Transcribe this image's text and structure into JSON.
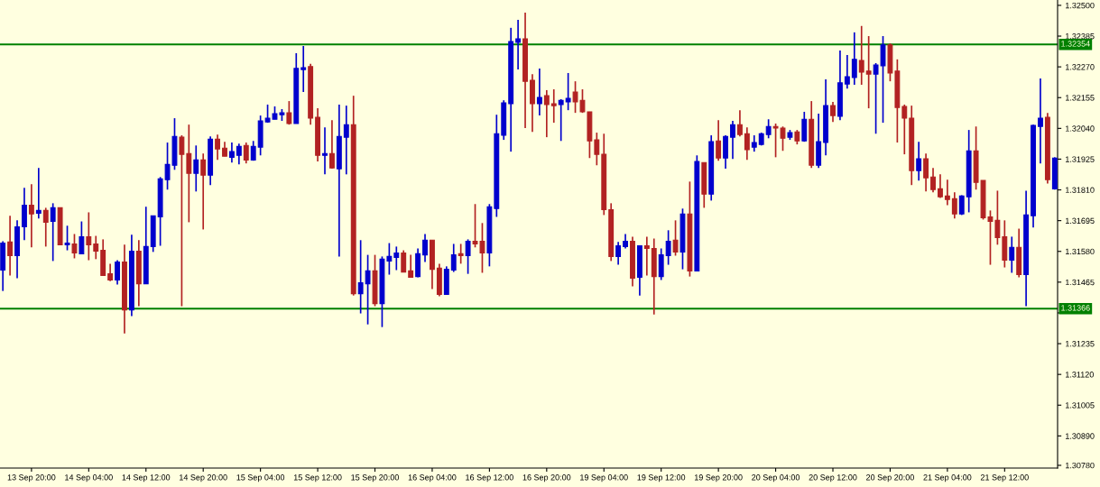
{
  "chart_data": {
    "type": "candlestick",
    "categories": [
      null,
      null,
      null,
      null,
      "13 Sep 20:00",
      null,
      null,
      null,
      null,
      null,
      null,
      null,
      "14 Sep 04:00",
      null,
      null,
      null,
      null,
      null,
      null,
      null,
      "14 Sep 12:00",
      null,
      null,
      null,
      null,
      null,
      null,
      null,
      "14 Sep 20:00",
      null,
      null,
      null,
      null,
      null,
      null,
      null,
      "15 Sep 04:00",
      null,
      null,
      null,
      null,
      null,
      null,
      null,
      "15 Sep 12:00",
      null,
      null,
      null,
      null,
      null,
      null,
      null,
      "15 Sep 20:00",
      null,
      null,
      null,
      null,
      null,
      null,
      null,
      "16 Sep 04:00",
      null,
      null,
      null,
      null,
      null,
      null,
      null,
      "16 Sep 12:00",
      null,
      null,
      null,
      null,
      null,
      null,
      null,
      "16 Sep 20:00",
      null,
      null,
      null,
      null,
      null,
      null,
      null,
      "19 Sep 04:00",
      null,
      null,
      null,
      null,
      null,
      null,
      null,
      "19 Sep 12:00",
      null,
      null,
      null,
      null,
      null,
      null,
      null,
      "19 Sep 20:00",
      null,
      null,
      null,
      null,
      null,
      null,
      null,
      "20 Sep 04:00",
      null,
      null,
      null,
      null,
      null,
      null,
      null,
      "20 Sep 12:00",
      null,
      null,
      null,
      null,
      null,
      null,
      null,
      "20 Sep 20:00",
      null,
      null,
      null,
      null,
      null,
      null,
      null,
      "21 Sep 04:00",
      null,
      null,
      null,
      null,
      null,
      null,
      null,
      "21 Sep 12:00",
      null,
      null,
      null,
      null,
      null,
      null,
      null
    ],
    "ohlc": [
      [
        1.3151,
        1.31618,
        1.31432,
        1.31611
      ],
      [
        1.31615,
        1.31713,
        1.3149,
        1.31564
      ],
      [
        1.31564,
        1.31696,
        1.3148,
        1.31672
      ],
      [
        1.31672,
        1.31818,
        1.31622,
        1.31753
      ],
      [
        1.31753,
        1.31831,
        1.31595,
        1.3172
      ],
      [
        1.31723,
        1.31892,
        1.31703,
        1.31733
      ],
      [
        1.31733,
        1.31743,
        1.31598,
        1.31689
      ],
      [
        1.31692,
        1.3176,
        1.31544,
        1.31743
      ],
      [
        1.31743,
        1.31743,
        1.31605,
        1.31605
      ],
      [
        1.31605,
        1.31676,
        1.31584,
        1.31611
      ],
      [
        1.31608,
        1.31645,
        1.31554,
        1.31574
      ],
      [
        1.31571,
        1.31692,
        1.31571,
        1.31635
      ],
      [
        1.31635,
        1.31726,
        1.31547,
        1.31605
      ],
      [
        1.31608,
        1.31638,
        1.31551,
        1.31581
      ],
      [
        1.31584,
        1.31625,
        1.3149,
        1.3149
      ],
      [
        1.31496,
        1.31534,
        1.31469,
        1.31473
      ],
      [
        1.31473,
        1.31547,
        1.31456,
        1.3154
      ],
      [
        1.3154,
        1.31605,
        1.31273,
        1.31361
      ],
      [
        1.31361,
        1.31642,
        1.31338,
        1.31581
      ],
      [
        1.31581,
        1.31622,
        1.31375,
        1.31459
      ],
      [
        1.31459,
        1.31747,
        1.31459,
        1.31598
      ],
      [
        1.31598,
        1.31713,
        1.31578,
        1.31713
      ],
      [
        1.31709,
        1.31858,
        1.31601,
        1.31851
      ],
      [
        1.31848,
        1.31987,
        1.31811,
        1.31905
      ],
      [
        1.31902,
        1.32078,
        1.31885,
        1.3201
      ],
      [
        1.32007,
        1.32014,
        1.31375,
        1.31943
      ],
      [
        1.31946,
        1.32054,
        1.31689,
        1.31872
      ],
      [
        1.31872,
        1.31976,
        1.31804,
        1.31922
      ],
      [
        1.31922,
        1.31946,
        1.31662,
        1.31865
      ],
      [
        1.31865,
        1.3201,
        1.31828,
        1.32
      ],
      [
        1.32,
        1.32017,
        1.31922,
        1.31963
      ],
      [
        1.31966,
        1.3199,
        1.31936,
        1.31936
      ],
      [
        1.31932,
        1.31987,
        1.31912,
        1.31953
      ],
      [
        1.31939,
        1.31983,
        1.31905,
        1.31973
      ],
      [
        1.31976,
        1.31987,
        1.31909,
        1.31922
      ],
      [
        1.31922,
        1.31993,
        1.31919,
        1.31973
      ],
      [
        1.3197,
        1.32088,
        1.31939,
        1.32068
      ],
      [
        1.32064,
        1.32129,
        1.32061,
        1.32078
      ],
      [
        1.32074,
        1.32122,
        1.32074,
        1.32095
      ],
      [
        1.32091,
        1.32112,
        1.32068,
        1.32098
      ],
      [
        1.32098,
        1.32142,
        1.32054,
        1.32058
      ],
      [
        1.32058,
        1.32321,
        1.32058,
        1.32264
      ],
      [
        1.3226,
        1.32348,
        1.32176,
        1.32267
      ],
      [
        1.32271,
        1.32281,
        1.32054,
        1.32078
      ],
      [
        1.32081,
        1.32115,
        1.31916,
        1.31939
      ],
      [
        1.31939,
        1.32044,
        1.31868,
        1.31946
      ],
      [
        1.31946,
        1.32071,
        1.31889,
        1.31892
      ],
      [
        1.31889,
        1.32129,
        1.31561,
        1.3201
      ],
      [
        1.32007,
        1.32125,
        1.31868,
        1.32054
      ],
      [
        1.32054,
        1.32162,
        1.31415,
        1.31422
      ],
      [
        1.31422,
        1.31622,
        1.31348,
        1.31463
      ],
      [
        1.31459,
        1.31567,
        1.31307,
        1.31507
      ],
      [
        1.31507,
        1.31567,
        1.31375,
        1.31385
      ],
      [
        1.31385,
        1.31561,
        1.31297,
        1.31551
      ],
      [
        1.31544,
        1.31611,
        1.31493,
        1.31561
      ],
      [
        1.31557,
        1.31598,
        1.3151,
        1.31574
      ],
      [
        1.31574,
        1.31584,
        1.31503,
        1.31503
      ],
      [
        1.31507,
        1.31567,
        1.31483,
        1.31483
      ],
      [
        1.31486,
        1.31591,
        1.31483,
        1.31571
      ],
      [
        1.31567,
        1.31645,
        1.3154,
        1.31622
      ],
      [
        1.31622,
        1.31622,
        1.31439,
        1.31513
      ],
      [
        1.31517,
        1.31534,
        1.31412,
        1.31419
      ],
      [
        1.31419,
        1.31524,
        1.31419,
        1.31513
      ],
      [
        1.3151,
        1.31608,
        1.31503,
        1.31567
      ],
      [
        1.31571,
        1.31608,
        1.31534,
        1.31564
      ],
      [
        1.31564,
        1.31625,
        1.31496,
        1.31618
      ],
      [
        1.31618,
        1.31757,
        1.31595,
        1.31608
      ],
      [
        1.31618,
        1.31686,
        1.315,
        1.31574
      ],
      [
        1.31574,
        1.31757,
        1.31524,
        1.31747
      ],
      [
        1.3174,
        1.32091,
        1.31709,
        1.3202
      ],
      [
        1.32014,
        1.32145,
        1.31997,
        1.32135
      ],
      [
        1.32132,
        1.32416,
        1.31953,
        1.32365
      ],
      [
        1.32362,
        1.32446,
        1.3226,
        1.32375
      ],
      [
        1.32375,
        1.32473,
        1.32041,
        1.32216
      ],
      [
        1.3222,
        1.32243,
        1.32027,
        1.32132
      ],
      [
        1.32132,
        1.32264,
        1.32088,
        1.32156
      ],
      [
        1.32162,
        1.32183,
        1.32007,
        1.32129
      ],
      [
        1.32132,
        1.32186,
        1.32061,
        1.32125
      ],
      [
        1.32129,
        1.32149,
        1.31993,
        1.32145
      ],
      [
        1.32139,
        1.32247,
        1.32108,
        1.32152
      ],
      [
        1.32176,
        1.32216,
        1.32098,
        1.32139
      ],
      [
        1.32145,
        1.32186,
        1.32098,
        1.32102
      ],
      [
        1.32102,
        1.32102,
        1.31929,
        1.31993
      ],
      [
        1.31997,
        1.32024,
        1.31902,
        1.31943
      ],
      [
        1.31943,
        1.3202,
        1.31716,
        1.31736
      ],
      [
        1.31736,
        1.3176,
        1.31544,
        1.31561
      ],
      [
        1.31561,
        1.31615,
        1.3153,
        1.31601
      ],
      [
        1.31598,
        1.31645,
        1.31591,
        1.31618
      ],
      [
        1.31618,
        1.31635,
        1.31449,
        1.3148
      ],
      [
        1.31483,
        1.31601,
        1.31415,
        1.31601
      ],
      [
        1.31601,
        1.31635,
        1.3149,
        1.31591
      ],
      [
        1.31591,
        1.31628,
        1.31344,
        1.31486
      ],
      [
        1.31486,
        1.31591,
        1.31473,
        1.31567
      ],
      [
        1.31564,
        1.31659,
        1.3153,
        1.31618
      ],
      [
        1.31622,
        1.31696,
        1.31564,
        1.31578
      ],
      [
        1.31578,
        1.3174,
        1.31513,
        1.3172
      ],
      [
        1.3172,
        1.31841,
        1.31486,
        1.31507
      ],
      [
        1.31507,
        1.31939,
        1.31507,
        1.31916
      ],
      [
        1.31912,
        1.31912,
        1.31743,
        1.31794
      ],
      [
        1.31794,
        1.32014,
        1.3177,
        1.3199
      ],
      [
        1.31993,
        1.32071,
        1.31919,
        1.31929
      ],
      [
        1.31929,
        1.32014,
        1.31889,
        1.3201
      ],
      [
        1.32007,
        1.32068,
        1.31926,
        1.32054
      ],
      [
        1.32054,
        1.32108,
        1.3201,
        1.32017
      ],
      [
        1.3202,
        1.32044,
        1.31922,
        1.3196
      ],
      [
        1.3197,
        1.32014,
        1.31953,
        1.31987
      ],
      [
        1.3198,
        1.32024,
        1.31976,
        1.3202
      ],
      [
        1.32017,
        1.32074,
        1.32003,
        1.32047
      ],
      [
        1.32047,
        1.32058,
        1.31932,
        1.32041
      ],
      [
        1.32041,
        1.32047,
        1.31956,
        1.32003
      ],
      [
        1.32007,
        1.32034,
        1.31997,
        1.32024
      ],
      [
        1.32027,
        1.32034,
        1.3198,
        1.31993
      ],
      [
        1.31993,
        1.32102,
        1.3199,
        1.32074
      ],
      [
        1.32074,
        1.32142,
        1.31892,
        1.31902
      ],
      [
        1.31902,
        1.32095,
        1.31892,
        1.3199
      ],
      [
        1.31987,
        1.32223,
        1.31939,
        1.32125
      ],
      [
        1.32125,
        1.32139,
        1.32064,
        1.32088
      ],
      [
        1.32085,
        1.32331,
        1.32071,
        1.3221
      ],
      [
        1.32206,
        1.32314,
        1.32189,
        1.32233
      ],
      [
        1.3223,
        1.32399,
        1.32203,
        1.32298
      ],
      [
        1.32294,
        1.32423,
        1.32203,
        1.3225
      ],
      [
        1.32254,
        1.32385,
        1.32115,
        1.32243
      ],
      [
        1.32243,
        1.32284,
        1.3202,
        1.32277
      ],
      [
        1.32274,
        1.32385,
        1.32061,
        1.32352
      ],
      [
        1.32352,
        1.32358,
        1.32216,
        1.32247
      ],
      [
        1.32254,
        1.32298,
        1.31987,
        1.32118
      ],
      [
        1.32122,
        1.32129,
        1.31943,
        1.32078
      ],
      [
        1.32078,
        1.32125,
        1.31828,
        1.31882
      ],
      [
        1.31882,
        1.3199,
        1.31845,
        1.31926
      ],
      [
        1.31926,
        1.31946,
        1.31804,
        1.31855
      ],
      [
        1.31858,
        1.31892,
        1.31801,
        1.31811
      ],
      [
        1.31814,
        1.31868,
        1.3178,
        1.31784
      ],
      [
        1.31787,
        1.31848,
        1.31753,
        1.31774
      ],
      [
        1.31777,
        1.31801,
        1.31703,
        1.3172
      ],
      [
        1.3172,
        1.3179,
        1.31716,
        1.31787
      ],
      [
        1.31784,
        1.32034,
        1.31726,
        1.31956
      ],
      [
        1.31956,
        1.32047,
        1.31811,
        1.31838
      ],
      [
        1.31845,
        1.31845,
        1.31699,
        1.31706
      ],
      [
        1.31709,
        1.31733,
        1.3153,
        1.31692
      ],
      [
        1.31696,
        1.31807,
        1.31605,
        1.31632
      ],
      [
        1.31635,
        1.31696,
        1.3152,
        1.31547
      ],
      [
        1.31547,
        1.31635,
        1.315,
        1.31595
      ],
      [
        1.31595,
        1.31665,
        1.31483,
        1.31493
      ],
      [
        1.31493,
        1.31807,
        1.31375,
        1.31716
      ],
      [
        1.31713,
        1.32054,
        1.31669,
        1.32051
      ],
      [
        1.32047,
        1.32227,
        1.31909,
        1.32078
      ],
      [
        1.32081,
        1.32098,
        1.31834,
        1.31848
      ],
      [
        1.31814,
        1.31932,
        1.31811,
        1.31929
      ]
    ],
    "colors": [
      "#0000cd",
      "#b22222",
      "#0000cd",
      "#0000cd",
      "#b22222",
      "#0000cd",
      "#b22222",
      "#0000cd",
      "#b22222",
      "#0000cd",
      "#b22222",
      "#0000cd",
      "#b22222",
      "#b22222",
      "#b22222",
      "#b22222",
      "#0000cd",
      "#b22222",
      "#0000cd",
      "#b22222",
      "#0000cd",
      "#0000cd",
      "#0000cd",
      "#0000cd",
      "#0000cd",
      "#b22222",
      "#b22222",
      "#0000cd",
      "#b22222",
      "#0000cd",
      "#b22222",
      "#b22222",
      "#0000cd",
      "#0000cd",
      "#b22222",
      "#0000cd",
      "#0000cd",
      "#0000cd",
      "#0000cd",
      "#0000cd",
      "#b22222",
      "#0000cd",
      "#0000cd",
      "#b22222",
      "#b22222",
      "#0000cd",
      "#b22222",
      "#0000cd",
      "#0000cd",
      "#b22222",
      "#0000cd",
      "#0000cd",
      "#b22222",
      "#0000cd",
      "#0000cd",
      "#0000cd",
      "#b22222",
      "#b22222",
      "#0000cd",
      "#0000cd",
      "#b22222",
      "#b22222",
      "#0000cd",
      "#0000cd",
      "#b22222",
      "#0000cd",
      "#b22222",
      "#b22222",
      "#0000cd",
      "#0000cd",
      "#0000cd",
      "#0000cd",
      "#0000cd",
      "#b22222",
      "#b22222",
      "#0000cd",
      "#b22222",
      "#b22222",
      "#0000cd",
      "#0000cd",
      "#b22222",
      "#b22222",
      "#b22222",
      "#b22222",
      "#b22222",
      "#b22222",
      "#0000cd",
      "#0000cd",
      "#b22222",
      "#0000cd",
      "#b22222",
      "#b22222",
      "#0000cd",
      "#0000cd",
      "#b22222",
      "#0000cd",
      "#b22222",
      "#0000cd",
      "#b22222",
      "#0000cd",
      "#b22222",
      "#0000cd",
      "#0000cd",
      "#b22222",
      "#b22222",
      "#0000cd",
      "#0000cd",
      "#0000cd",
      "#b22222",
      "#b22222",
      "#0000cd",
      "#b22222",
      "#0000cd",
      "#b22222",
      "#0000cd",
      "#0000cd",
      "#b22222",
      "#0000cd",
      "#0000cd",
      "#0000cd",
      "#b22222",
      "#b22222",
      "#0000cd",
      "#0000cd",
      "#b22222",
      "#b22222",
      "#b22222",
      "#b22222",
      "#0000cd",
      "#b22222",
      "#b22222",
      "#b22222",
      "#b22222",
      "#b22222",
      "#0000cd",
      "#0000cd",
      "#b22222",
      "#b22222",
      "#b22222",
      "#b22222",
      "#b22222",
      "#0000cd",
      "#b22222",
      "#0000cd",
      "#0000cd",
      "#0000cd",
      "#b22222",
      "#0000cd"
    ],
    "ylim": [
      1.3077,
      1.3252
    ],
    "yticks": [
      {
        "value": 1.325,
        "label": "1.32500"
      },
      {
        "value": 1.32385,
        "label": "1.32385"
      },
      {
        "value": 1.3227,
        "label": "1.32270"
      },
      {
        "value": 1.32155,
        "label": "1.32155"
      },
      {
        "value": 1.3204,
        "label": "1.32040"
      },
      {
        "value": 1.31925,
        "label": "1.31925"
      },
      {
        "value": 1.3181,
        "label": "1.31810"
      },
      {
        "value": 1.31695,
        "label": "1.31695"
      },
      {
        "value": 1.3158,
        "label": "1.31580"
      },
      {
        "value": 1.31465,
        "label": "1.31465"
      },
      {
        "value": 1.3135,
        "label": null
      },
      {
        "value": 1.31235,
        "label": "1.31235"
      },
      {
        "value": 1.3112,
        "label": "1.31120"
      },
      {
        "value": 1.31005,
        "label": "1.31005"
      },
      {
        "value": 1.3089,
        "label": "1.30890"
      },
      {
        "value": 1.3078,
        "label": "1.30780"
      }
    ],
    "ref_lines": [
      {
        "axis": "y",
        "value": 1.32354,
        "label": "1.32354",
        "color": "#008000"
      },
      {
        "axis": "y",
        "value": 1.31366,
        "label": "1.31366",
        "color": "#008000"
      }
    ],
    "grid": false,
    "legend": false
  }
}
